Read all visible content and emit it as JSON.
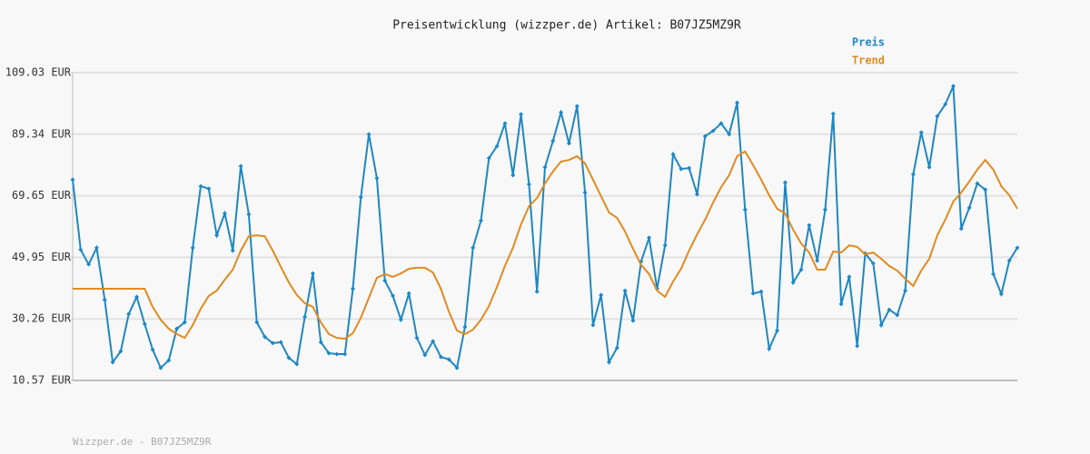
{
  "chart_data": {
    "type": "line",
    "title": "Preisentwicklung (wizzper.de) Artikel: B07JZ5MZ9R",
    "footer": "Wizzper.de - B07JZ5MZ9R",
    "ylim": [
      10.57,
      109.03
    ],
    "yticks": [
      {
        "value": 10.57,
        "label": "10.57 EUR"
      },
      {
        "value": 30.26,
        "label": "30.26 EUR"
      },
      {
        "value": 49.95,
        "label": "49.95 EUR"
      },
      {
        "value": 69.65,
        "label": "69.65 EUR"
      },
      {
        "value": 89.34,
        "label": "89.34 EUR"
      },
      {
        "value": 109.03,
        "label": "109.03 EUR"
      }
    ],
    "grid": true,
    "legend": "top-right",
    "series": [
      {
        "name": "Preis",
        "color": "#1f87c0",
        "markers": true,
        "values": [
          74.8,
          52.4,
          47.7,
          53.0,
          36.4,
          16.4,
          19.9,
          31.8,
          37.3,
          28.6,
          20.4,
          14.6,
          17.0,
          27.1,
          29.2,
          53.0,
          72.7,
          71.9,
          57.0,
          64.0,
          52.1,
          79.1,
          63.7,
          29.2,
          24.5,
          22.5,
          22.8,
          17.8,
          15.8,
          30.9,
          44.8,
          22.8,
          19.3,
          19.0,
          19.0,
          39.9,
          69.2,
          89.3,
          75.3,
          42.5,
          37.6,
          30.0,
          38.4,
          24.2,
          18.7,
          23.1,
          18.1,
          17.3,
          14.6,
          27.7,
          53.0,
          61.7,
          81.7,
          85.5,
          92.8,
          76.2,
          95.7,
          73.3,
          39.0,
          78.8,
          87.2,
          96.3,
          86.4,
          98.3,
          70.7,
          28.3,
          37.9,
          16.4,
          21.0,
          39.3,
          29.7,
          48.6,
          56.2,
          39.9,
          53.8,
          82.9,
          78.2,
          78.5,
          70.1,
          88.7,
          90.4,
          92.8,
          89.3,
          99.4,
          65.2,
          38.4,
          39.0,
          20.7,
          26.5,
          73.9,
          41.9,
          46.0,
          60.2,
          48.9,
          65.2,
          95.9,
          35.0,
          43.7,
          21.6,
          51.2,
          48.0,
          28.3,
          33.2,
          31.5,
          39.3,
          76.5,
          89.9,
          78.8,
          95.1,
          98.9,
          104.7,
          59.1,
          65.8,
          73.6,
          71.6,
          44.6,
          38.2,
          48.9,
          53.0
        ]
      },
      {
        "name": "Trend",
        "color": "#e08a20",
        "markers": false,
        "values": [
          39.9,
          39.9,
          39.9,
          39.9,
          39.9,
          39.9,
          39.9,
          39.9,
          39.9,
          39.9,
          34.1,
          30.0,
          27.1,
          25.4,
          24.2,
          28.3,
          33.5,
          37.6,
          39.3,
          42.8,
          46.0,
          52.1,
          56.7,
          57.0,
          56.7,
          52.1,
          46.9,
          41.9,
          37.9,
          35.3,
          34.1,
          29.2,
          25.4,
          24.2,
          23.9,
          25.7,
          30.6,
          37.0,
          43.4,
          44.6,
          43.7,
          44.8,
          46.3,
          46.6,
          46.6,
          45.1,
          39.9,
          32.6,
          26.5,
          25.4,
          26.8,
          30.0,
          34.4,
          40.5,
          47.2,
          53.0,
          60.5,
          66.3,
          68.9,
          73.6,
          77.4,
          80.6,
          81.1,
          82.3,
          80.0,
          74.8,
          69.5,
          64.3,
          62.6,
          58.2,
          52.7,
          47.5,
          44.6,
          39.3,
          37.3,
          42.2,
          46.3,
          52.1,
          57.3,
          62.0,
          67.5,
          72.4,
          76.2,
          82.3,
          83.8,
          79.4,
          74.8,
          69.8,
          65.5,
          64.0,
          58.8,
          54.4,
          51.5,
          46.0,
          46.0,
          51.8,
          51.5,
          53.8,
          53.3,
          50.9,
          51.5,
          49.5,
          47.2,
          45.7,
          43.1,
          40.8,
          45.7,
          49.5,
          57.0,
          62.0,
          67.8,
          70.7,
          74.2,
          78.0,
          81.1,
          78.0,
          72.7,
          69.8,
          65.5
        ]
      }
    ]
  }
}
